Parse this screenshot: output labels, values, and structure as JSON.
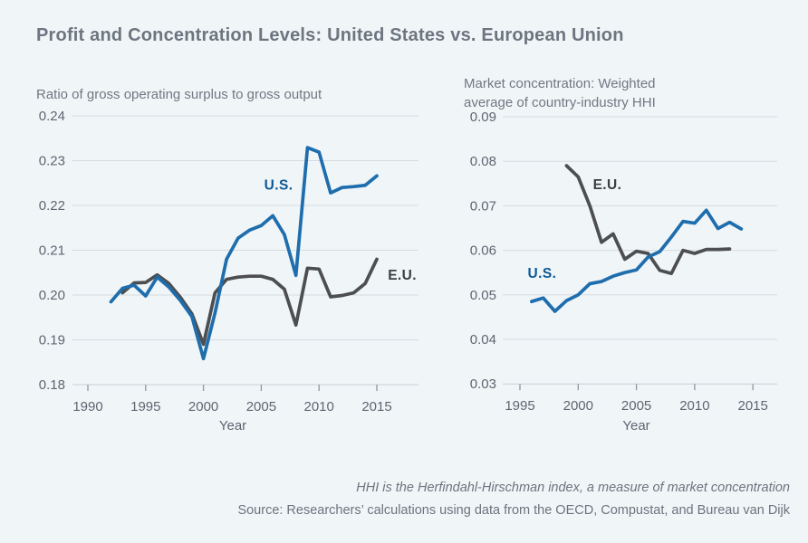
{
  "title": "Profit and Concentration Levels: United States vs. European Union",
  "colors": {
    "background": "#f0f5f8",
    "grid": "#d6dbe0",
    "tick": "#8f989f",
    "us_blue": "#1e6dad",
    "eu_gray": "#4c4e50",
    "us_label_blue": "#0d5995",
    "eu_label_gray": "#3c3e40"
  },
  "chart_data": [
    {
      "type": "line",
      "title": "Ratio of gross operating surplus to gross output",
      "xlabel": "Year",
      "ylim": [
        0.18,
        0.24
      ],
      "ytick_step": 0.01,
      "yticks": [
        0.18,
        0.19,
        0.2,
        0.21,
        0.22,
        0.23,
        0.24
      ],
      "xticks": [
        1990,
        1995,
        2000,
        2005,
        2010,
        2015
      ],
      "grid": true,
      "legend_position": "inline-labels",
      "series": [
        {
          "name": "U.S.",
          "color": "#1e6dad",
          "label_color": "#0d5995",
          "label_at": {
            "year": 2006.5,
            "value": 0.2245
          },
          "x": [
            1992,
            1993,
            1994,
            1995,
            1996,
            1997,
            1998,
            1999,
            2000,
            2001,
            2002,
            2003,
            2004,
            2005,
            2006,
            2007,
            2008,
            2009,
            2010,
            2011,
            2012,
            2013,
            2014,
            2015
          ],
          "values": [
            0.1985,
            0.2015,
            0.2022,
            0.1998,
            0.204,
            0.2018,
            0.1988,
            0.1952,
            0.1858,
            0.196,
            0.208,
            0.2127,
            0.2145,
            0.2155,
            0.2177,
            0.2135,
            0.2044,
            0.2329,
            0.2319,
            0.2228,
            0.224,
            0.2242,
            0.2245,
            0.2266
          ]
        },
        {
          "name": "E.U.",
          "color": "#4c4e50",
          "label_color": "#3c3e40",
          "label_at": {
            "year": 2017.2,
            "value": 0.2044
          },
          "x": [
            1993,
            1994,
            1995,
            1996,
            1997,
            1998,
            1999,
            2000,
            2001,
            2002,
            2003,
            2004,
            2005,
            2006,
            2007,
            2008,
            2009,
            2010,
            2011,
            2012,
            2013,
            2014,
            2015
          ],
          "values": [
            0.2005,
            0.2027,
            0.2028,
            0.2045,
            0.2026,
            0.1995,
            0.1958,
            0.189,
            0.2005,
            0.2035,
            0.204,
            0.2042,
            0.2042,
            0.2035,
            0.2013,
            0.1933,
            0.206,
            0.2058,
            0.1996,
            0.1999,
            0.2005,
            0.2026,
            0.208
          ]
        }
      ]
    },
    {
      "type": "line",
      "title": "Market concentration: Weighted\naverage of country-industry HHI",
      "xlabel": "Year",
      "ylim": [
        0.03,
        0.09
      ],
      "ytick_step": 0.01,
      "yticks": [
        0.03,
        0.04,
        0.05,
        0.06,
        0.07,
        0.08,
        0.09
      ],
      "xticks": [
        1995,
        2000,
        2005,
        2010,
        2015
      ],
      "grid": true,
      "legend_position": "inline-labels",
      "series": [
        {
          "name": "U.S.",
          "color": "#1e6dad",
          "label_color": "#0d5995",
          "label_at": {
            "year": 1996.9,
            "value": 0.0548
          },
          "x": [
            1996,
            1997,
            1998,
            1999,
            2000,
            2001,
            2002,
            2003,
            2004,
            2005,
            2006,
            2007,
            2008,
            2009,
            2010,
            2011,
            2012,
            2013,
            2014
          ],
          "values": [
            0.0485,
            0.0493,
            0.0463,
            0.0487,
            0.05,
            0.0525,
            0.053,
            0.0542,
            0.055,
            0.0556,
            0.0585,
            0.0597,
            0.063,
            0.0665,
            0.0661,
            0.069,
            0.0649,
            0.0663,
            0.0648
          ]
        },
        {
          "name": "E.U.",
          "color": "#4c4e50",
          "label_color": "#3c3e40",
          "label_at": {
            "year": 2002.5,
            "value": 0.0748
          },
          "x": [
            1999,
            2000,
            2001,
            2002,
            2003,
            2004,
            2005,
            2006,
            2007,
            2008,
            2009,
            2010,
            2011,
            2012,
            2013
          ],
          "values": [
            0.079,
            0.0765,
            0.07,
            0.0618,
            0.0637,
            0.058,
            0.0598,
            0.0593,
            0.0555,
            0.0548,
            0.06,
            0.0593,
            0.0602,
            0.0602,
            0.0603
          ]
        }
      ]
    }
  ],
  "footer": {
    "note": "HHI is the Herfindahl-Hirschman index, a measure of market concentration",
    "source": "Source: Researchers’ calculations using data from the OECD, Compustat, and Bureau van Dijk"
  }
}
